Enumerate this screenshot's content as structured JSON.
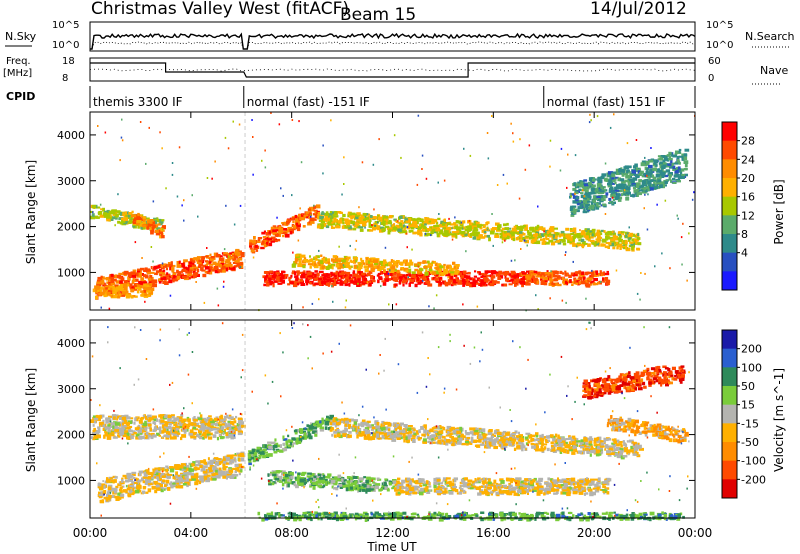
{
  "header": {
    "title": "Christmas Valley West (fitACF)",
    "beam": "Beam 15",
    "date": "14/Jul/2012"
  },
  "strip": {
    "nsky_label": "N.Sky",
    "nsky_ticks": [
      "10^5",
      "10^0"
    ],
    "nsearch_label": "N.Search",
    "nsearch_ticks": [
      "10^5",
      "10^0"
    ],
    "freq_label_1": "Freq.",
    "freq_label_2": "[MHz]",
    "freq_ticks": [
      "18",
      "8"
    ],
    "nave_label": "Nave",
    "nave_ticks": [
      "60",
      "0"
    ],
    "cpid_label": "CPID",
    "cpid_segments": [
      {
        "label": "themis 3300 IF",
        "start": 0.0
      },
      {
        "label": "normal (fast) -151 IF",
        "start": 6.1
      },
      {
        "label": "normal (fast) 151 IF",
        "start": 18.0
      }
    ],
    "freq_steps": [
      {
        "from": 0.0,
        "to": 3.0,
        "level": "high"
      },
      {
        "from": 3.0,
        "to": 6.1,
        "level": "mid"
      },
      {
        "from": 6.2,
        "to": 15.0,
        "level": "low"
      },
      {
        "from": 15.0,
        "to": 24.0,
        "level": "high"
      }
    ]
  },
  "chart_data": [
    {
      "type": "heatmap",
      "ylabel": "Slant Range [km]",
      "xlabel": "Time UT",
      "x_ticks": [
        "00:00",
        "04:00",
        "08:00",
        "12:00",
        "16:00",
        "20:00",
        "00:00"
      ],
      "xlim": [
        0,
        24
      ],
      "ylim": [
        180,
        4500
      ],
      "y_ticks": [
        1000,
        2000,
        3000,
        4000
      ],
      "colorbar_label": "Power [dB]",
      "colorbar_ticks": [
        "28",
        "24",
        "20",
        "16",
        "12",
        "8",
        "4"
      ],
      "colorbar_colors": [
        "#ff0000",
        "#ff4a00",
        "#ff8c00",
        "#ffb000",
        "#a8c800",
        "#5bab6b",
        "#2e8a8a",
        "#2850c0",
        "#1a1aff"
      ],
      "scatter_bands": [
        {
          "t0": 0.0,
          "t1": 2.8,
          "r0": 2350,
          "r1": 2050,
          "w": 280,
          "v": 0.5
        },
        {
          "t0": 1.6,
          "t1": 2.9,
          "r0": 2250,
          "r1": 1900,
          "w": 260,
          "v": 0.8
        },
        {
          "t0": 0.2,
          "t1": 6.0,
          "r0": 700,
          "r1": 1350,
          "w": 420,
          "v": 0.85
        },
        {
          "t0": 0.1,
          "t1": 2.4,
          "r0": 600,
          "r1": 650,
          "w": 280,
          "v": 0.7
        },
        {
          "t0": 6.3,
          "t1": 9.0,
          "r0": 1600,
          "r1": 2350,
          "w": 340,
          "v": 0.85
        },
        {
          "t0": 6.8,
          "t1": 17.5,
          "r0": 900,
          "r1": 900,
          "w": 300,
          "v": 0.95
        },
        {
          "t0": 8.0,
          "t1": 14.5,
          "r0": 1300,
          "r1": 1100,
          "w": 260,
          "v": 0.65
        },
        {
          "t0": 9.0,
          "t1": 21.8,
          "r0": 2200,
          "r1": 1700,
          "w": 360,
          "v": 0.55
        },
        {
          "t0": 17.0,
          "t1": 20.5,
          "r0": 900,
          "r1": 900,
          "w": 300,
          "v": 0.85
        },
        {
          "t0": 19.0,
          "t1": 23.6,
          "r0": 2600,
          "r1": 3400,
          "w": 700,
          "v": 0.3
        }
      ]
    },
    {
      "type": "heatmap",
      "ylabel": "Slant Range [km]",
      "xlabel": "Time UT",
      "x_ticks": [
        "00:00",
        "04:00",
        "08:00",
        "12:00",
        "16:00",
        "20:00",
        "00:00"
      ],
      "xlim": [
        0,
        24
      ],
      "ylim": [
        180,
        4500
      ],
      "y_ticks": [
        1000,
        2000,
        3000,
        4000
      ],
      "colorbar_label": "Velocity [m s^-1]",
      "colorbar_ticks": [
        "200",
        "100",
        "50",
        "15",
        "-15",
        "-50",
        "-100",
        "-200"
      ],
      "colorbar_colors": [
        "#1a1aa8",
        "#2a5fd0",
        "#2e8a5a",
        "#7acc3a",
        "#b4b4b0",
        "#ffb000",
        "#ff8c00",
        "#ff4a00",
        "#e00000"
      ],
      "scatter_bands": [
        {
          "t0": 0.0,
          "t1": 6.0,
          "r0": 2200,
          "r1": 2200,
          "w": 500,
          "v": 0.45
        },
        {
          "t0": 0.3,
          "t1": 6.0,
          "r0": 800,
          "r1": 1400,
          "w": 500,
          "v": 0.45
        },
        {
          "t0": 6.2,
          "t1": 9.5,
          "r0": 1500,
          "r1": 2300,
          "w": 300,
          "v": 0.68
        },
        {
          "t0": 7.0,
          "t1": 12.0,
          "r0": 1100,
          "r1": 900,
          "w": 300,
          "v": 0.65
        },
        {
          "t0": 6.5,
          "t1": 23.5,
          "r0": 250,
          "r1": 250,
          "w": 150,
          "v": 0.7
        },
        {
          "t0": 9.5,
          "t1": 21.8,
          "r0": 2200,
          "r1": 1700,
          "w": 380,
          "v": 0.45
        },
        {
          "t0": 12.0,
          "t1": 20.5,
          "r0": 900,
          "r1": 900,
          "w": 340,
          "v": 0.45
        },
        {
          "t0": 19.5,
          "t1": 23.5,
          "r0": 3000,
          "r1": 3400,
          "w": 400,
          "v": 0.1
        },
        {
          "t0": 20.5,
          "t1": 23.6,
          "r0": 2300,
          "r1": 2000,
          "w": 300,
          "v": 0.35
        }
      ]
    }
  ]
}
